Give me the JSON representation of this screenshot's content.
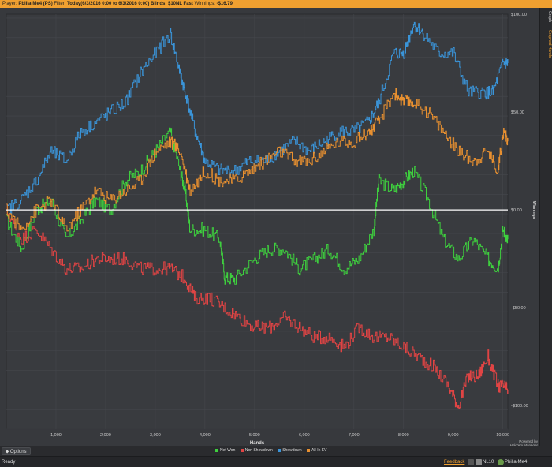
{
  "titlebar": {
    "player_label": "Player:",
    "player_value": "Pbilia-Me4 (PS)",
    "filter_label": "Filter:",
    "filter_value": "Today(6/3/2016 0:00 to 6/3/2016 0:00) Blinds: $10NL Fast",
    "winnings_label": "Winnings:",
    "winnings_value": "-$16.79"
  },
  "side_tabs": [
    "Graph",
    "Graphed Hands"
  ],
  "chart_data": {
    "type": "line",
    "xlabel": "Hands",
    "ylabel": "Winnings",
    "xlim": [
      0,
      10100
    ],
    "ylim": [
      -112,
      100
    ],
    "x_ticks": [
      1000,
      2000,
      3000,
      4000,
      5000,
      6000,
      7000,
      8000,
      9000,
      10000
    ],
    "x_tick_labels": [
      "1,000",
      "2,000",
      "3,000",
      "4,000",
      "5,000",
      "6,000",
      "7,000",
      "8,000",
      "9,000",
      "10,000"
    ],
    "y_ticks": [
      100,
      50,
      0,
      -50,
      -100
    ],
    "y_tick_labels": [
      "$100.00",
      "$50.00",
      "$0.00",
      "-$50.00",
      "-$100.00"
    ],
    "series": [
      {
        "name": "Net Won",
        "color": "#3ecf3e",
        "x": [
          0,
          300,
          600,
          900,
          1200,
          1500,
          1800,
          2100,
          2400,
          2700,
          3000,
          3300,
          3500,
          3600,
          3700,
          4000,
          4300,
          4400,
          4600,
          5000,
          5300,
          5600,
          5900,
          6200,
          6500,
          6800,
          7100,
          7400,
          7500,
          7800,
          8000,
          8200,
          8500,
          8800,
          9100,
          9400,
          9700,
          9900,
          10000,
          10100
        ],
        "y": [
          -5,
          -20,
          0,
          5,
          -15,
          -5,
          5,
          0,
          15,
          20,
          30,
          40,
          20,
          10,
          -10,
          -10,
          -15,
          -35,
          -35,
          -25,
          -20,
          -20,
          -30,
          -25,
          -20,
          -30,
          -25,
          -10,
          15,
          10,
          15,
          20,
          5,
          -15,
          -25,
          -15,
          -25,
          -30,
          -10,
          -15
        ]
      },
      {
        "name": "Non Showdown",
        "color": "#e04444",
        "x": [
          0,
          300,
          600,
          900,
          1200,
          1500,
          1800,
          2100,
          2400,
          2700,
          3000,
          3300,
          3600,
          3800,
          4100,
          4400,
          4700,
          5000,
          5300,
          5600,
          5900,
          6200,
          6500,
          6800,
          7100,
          7400,
          7700,
          8000,
          8300,
          8600,
          8900,
          9100,
          9300,
          9500,
          9700,
          9900,
          10000,
          10100
        ],
        "y": [
          0,
          -15,
          -10,
          -20,
          -30,
          -30,
          -25,
          -25,
          -25,
          -30,
          -30,
          -30,
          -35,
          -45,
          -45,
          -50,
          -55,
          -60,
          -60,
          -55,
          -60,
          -65,
          -65,
          -70,
          -60,
          -65,
          -65,
          -70,
          -75,
          -80,
          -90,
          -100,
          -85,
          -85,
          -75,
          -90,
          -90,
          -92
        ]
      },
      {
        "name": "Showdown",
        "color": "#3a94d8",
        "x": [
          0,
          300,
          600,
          900,
          1200,
          1500,
          1800,
          2100,
          2400,
          2700,
          3000,
          3300,
          3500,
          3600,
          3800,
          4000,
          4300,
          4600,
          4900,
          5200,
          5500,
          5800,
          6100,
          6400,
          6700,
          7000,
          7300,
          7500,
          7800,
          8000,
          8200,
          8400,
          8700,
          9000,
          9300,
          9600,
          9800,
          10000,
          10100
        ],
        "y": [
          0,
          5,
          15,
          30,
          25,
          40,
          45,
          50,
          55,
          70,
          80,
          90,
          70,
          60,
          40,
          25,
          20,
          20,
          25,
          25,
          30,
          35,
          30,
          35,
          40,
          40,
          45,
          55,
          80,
          80,
          95,
          90,
          80,
          80,
          60,
          60,
          60,
          75,
          75
        ]
      },
      {
        "name": "All-In EV",
        "color": "#e89030",
        "x": [
          0,
          300,
          600,
          900,
          1200,
          1500,
          1800,
          2100,
          2400,
          2700,
          3000,
          3300,
          3500,
          3700,
          4000,
          4300,
          4600,
          4900,
          5200,
          5500,
          5800,
          6100,
          6400,
          6700,
          7000,
          7300,
          7500,
          7800,
          8000,
          8200,
          8500,
          8800,
          9100,
          9400,
          9700,
          9900,
          10000,
          10100
        ],
        "y": [
          0,
          -10,
          0,
          5,
          -10,
          0,
          10,
          5,
          10,
          15,
          30,
          35,
          30,
          10,
          20,
          15,
          15,
          20,
          25,
          30,
          25,
          25,
          30,
          35,
          35,
          40,
          45,
          60,
          55,
          55,
          50,
          40,
          30,
          25,
          30,
          20,
          40,
          35
        ]
      }
    ],
    "legend": [
      "Net Won",
      "Non Showdown",
      "Showdown",
      "All-In EV"
    ],
    "legend_placement": "bottom-center",
    "zero_line": true
  },
  "options_label": "Options",
  "brand": {
    "line1": "Powered by",
    "line2": "Hold'em Manager"
  },
  "status": {
    "ready": "Ready",
    "feedback": "Feedback",
    "game": "NL10",
    "player": "Pbilia-Me4 (PokerStars)"
  }
}
